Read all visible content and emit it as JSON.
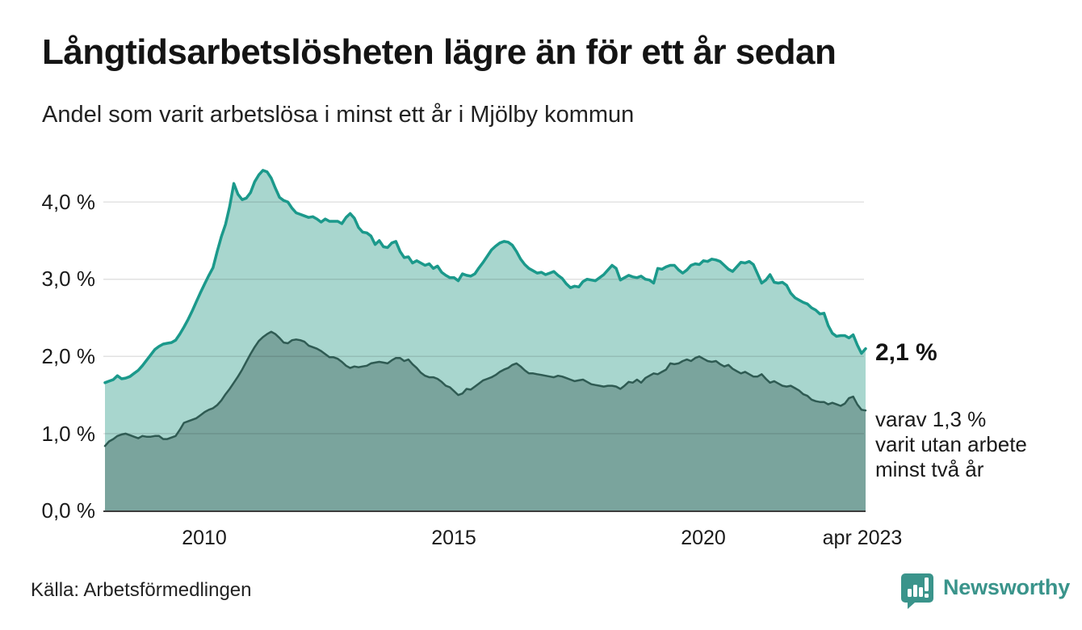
{
  "header": {
    "title": "Långtidsarbetslösheten lägre än för ett år sedan",
    "subtitle": "Andel som varit arbetslösa i minst ett år i Mjölby kommun"
  },
  "chart_data": {
    "type": "area",
    "title": "Långtidsarbetslösheten lägre än för ett år sedan",
    "subtitle": "Andel som varit arbetslösa i minst ett år i Mjölby kommun",
    "unit": "%",
    "frequency": "monthly",
    "x_start": "2008-01",
    "x_end": "2023-04",
    "ylim": [
      0,
      4.6
    ],
    "grid": true,
    "ytick_values": [
      4,
      3,
      2,
      1,
      0
    ],
    "ytick_labels": [
      "4,0 %",
      "3,0 %",
      "2,0 %",
      "1,0 %",
      "0,0 %"
    ],
    "xticks": [
      {
        "label": "2010",
        "month_index": 24
      },
      {
        "label": "2015",
        "month_index": 84
      },
      {
        "label": "2020",
        "month_index": 144
      },
      {
        "label": "apr 2023",
        "month_index": 183
      }
    ],
    "series": [
      {
        "name": "Arbetslösa minst ett år",
        "line_color": "#1b998b",
        "fill_color": "#a8d6ce",
        "line_width": 3.5,
        "latest_value": 2.1,
        "values": [
          1.66,
          1.68,
          1.7,
          1.75,
          1.71,
          1.72,
          1.74,
          1.78,
          1.82,
          1.88,
          1.95,
          2.02,
          2.09,
          2.13,
          2.16,
          2.17,
          2.18,
          2.21,
          2.29,
          2.38,
          2.48,
          2.59,
          2.71,
          2.83,
          2.94,
          3.05,
          3.15,
          3.36,
          3.55,
          3.71,
          3.94,
          4.24,
          4.1,
          4.03,
          4.05,
          4.12,
          4.26,
          4.35,
          4.41,
          4.39,
          4.31,
          4.18,
          4.06,
          4.02,
          4.0,
          3.92,
          3.86,
          3.84,
          3.82,
          3.8,
          3.81,
          3.78,
          3.74,
          3.78,
          3.75,
          3.75,
          3.75,
          3.72,
          3.8,
          3.85,
          3.79,
          3.67,
          3.61,
          3.6,
          3.56,
          3.45,
          3.5,
          3.42,
          3.41,
          3.47,
          3.49,
          3.36,
          3.28,
          3.29,
          3.21,
          3.24,
          3.21,
          3.18,
          3.2,
          3.14,
          3.17,
          3.09,
          3.05,
          3.02,
          3.02,
          2.98,
          3.07,
          3.05,
          3.04,
          3.07,
          3.15,
          3.22,
          3.3,
          3.38,
          3.43,
          3.47,
          3.49,
          3.48,
          3.44,
          3.36,
          3.26,
          3.19,
          3.14,
          3.11,
          3.08,
          3.09,
          3.06,
          3.08,
          3.1,
          3.05,
          3.01,
          2.94,
          2.89,
          2.91,
          2.9,
          2.97,
          3.0,
          2.99,
          2.98,
          3.02,
          3.06,
          3.12,
          3.18,
          3.14,
          2.99,
          3.02,
          3.05,
          3.03,
          3.02,
          3.04,
          3.0,
          2.99,
          2.95,
          3.14,
          3.13,
          3.16,
          3.18,
          3.18,
          3.12,
          3.08,
          3.12,
          3.18,
          3.2,
          3.19,
          3.24,
          3.23,
          3.26,
          3.25,
          3.23,
          3.18,
          3.13,
          3.1,
          3.16,
          3.22,
          3.21,
          3.23,
          3.19,
          3.07,
          2.95,
          2.99,
          3.06,
          2.96,
          2.95,
          2.96,
          2.92,
          2.82,
          2.76,
          2.73,
          2.7,
          2.68,
          2.63,
          2.6,
          2.55,
          2.56,
          2.4,
          2.3,
          2.26,
          2.27,
          2.27,
          2.24,
          2.28,
          2.15,
          2.04,
          2.1
        ]
      },
      {
        "name": "Arbetslösa minst två år",
        "line_color": "#2f5b53",
        "fill_color": "#7aa49d",
        "line_width": 2.5,
        "latest_value": 1.3,
        "values": [
          0.84,
          0.9,
          0.93,
          0.97,
          0.99,
          1.0,
          0.98,
          0.96,
          0.94,
          0.97,
          0.96,
          0.96,
          0.97,
          0.97,
          0.93,
          0.93,
          0.95,
          0.97,
          1.05,
          1.14,
          1.16,
          1.18,
          1.2,
          1.24,
          1.28,
          1.31,
          1.33,
          1.37,
          1.43,
          1.51,
          1.58,
          1.66,
          1.74,
          1.83,
          1.93,
          2.03,
          2.12,
          2.2,
          2.25,
          2.29,
          2.32,
          2.29,
          2.24,
          2.18,
          2.17,
          2.21,
          2.22,
          2.21,
          2.19,
          2.14,
          2.12,
          2.1,
          2.07,
          2.03,
          1.99,
          1.99,
          1.97,
          1.93,
          1.88,
          1.85,
          1.87,
          1.86,
          1.87,
          1.88,
          1.91,
          1.92,
          1.93,
          1.92,
          1.91,
          1.95,
          1.98,
          1.98,
          1.94,
          1.96,
          1.9,
          1.85,
          1.79,
          1.75,
          1.73,
          1.73,
          1.71,
          1.67,
          1.62,
          1.6,
          1.55,
          1.5,
          1.52,
          1.58,
          1.57,
          1.61,
          1.65,
          1.69,
          1.71,
          1.73,
          1.76,
          1.8,
          1.83,
          1.85,
          1.89,
          1.91,
          1.87,
          1.82,
          1.78,
          1.78,
          1.77,
          1.76,
          1.75,
          1.74,
          1.73,
          1.75,
          1.74,
          1.72,
          1.7,
          1.68,
          1.69,
          1.7,
          1.67,
          1.64,
          1.63,
          1.62,
          1.61,
          1.62,
          1.62,
          1.61,
          1.58,
          1.62,
          1.67,
          1.66,
          1.7,
          1.66,
          1.72,
          1.75,
          1.78,
          1.77,
          1.8,
          1.83,
          1.91,
          1.9,
          1.91,
          1.94,
          1.96,
          1.94,
          1.98,
          2.0,
          1.97,
          1.94,
          1.93,
          1.94,
          1.9,
          1.87,
          1.89,
          1.84,
          1.81,
          1.78,
          1.8,
          1.77,
          1.74,
          1.74,
          1.77,
          1.71,
          1.66,
          1.68,
          1.65,
          1.62,
          1.61,
          1.62,
          1.59,
          1.56,
          1.51,
          1.49,
          1.44,
          1.42,
          1.41,
          1.41,
          1.38,
          1.4,
          1.38,
          1.36,
          1.39,
          1.46,
          1.48,
          1.38,
          1.31,
          1.3
        ]
      }
    ]
  },
  "annotations": {
    "latest_value": "2,1 %",
    "detail_lines": [
      "varav 1,3 %",
      "varit utan arbete",
      "minst två år"
    ]
  },
  "footer": {
    "source": "Källa: Arbetsförmedlingen",
    "brand": "Newsworthy"
  },
  "colors": {
    "accent_teal": "#1b998b",
    "light_fill": "#a8d6ce",
    "dark_line": "#2f5b53",
    "dark_fill": "#7aa49d",
    "brand_teal": "#3a948b",
    "gridline": "#e0e0e0",
    "axis_line": "#3c3c3c",
    "text": "#1a1a1a"
  }
}
